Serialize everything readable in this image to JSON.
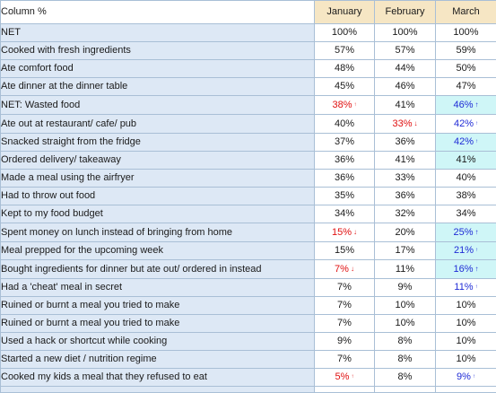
{
  "table": {
    "corner_label": "Column %",
    "columns": [
      "January",
      "February",
      "March"
    ],
    "rows": [
      {
        "label": "NET",
        "cells": [
          {
            "v": "100%"
          },
          {
            "v": "100%"
          },
          {
            "v": "100%"
          }
        ]
      },
      {
        "label": "Cooked with fresh ingredients",
        "cells": [
          {
            "v": "57%"
          },
          {
            "v": "57%"
          },
          {
            "v": "59%"
          }
        ]
      },
      {
        "label": "Ate comfort food",
        "cells": [
          {
            "v": "48%"
          },
          {
            "v": "44%"
          },
          {
            "v": "50%"
          }
        ]
      },
      {
        "label": "Ate dinner at the dinner table",
        "cells": [
          {
            "v": "45%"
          },
          {
            "v": "46%"
          },
          {
            "v": "47%"
          }
        ]
      },
      {
        "label": "NET: Wasted food",
        "cells": [
          {
            "v": "38%",
            "c": "red",
            "a": "up",
            "s": "small"
          },
          {
            "v": "41%"
          },
          {
            "v": "46%",
            "c": "blue",
            "a": "up",
            "hl": true
          }
        ]
      },
      {
        "label": "Ate out at restaurant/ cafe/ pub",
        "cells": [
          {
            "v": "40%"
          },
          {
            "v": "33%",
            "c": "red",
            "a": "down"
          },
          {
            "v": "42%",
            "c": "blue",
            "a": "up",
            "s": "small"
          }
        ]
      },
      {
        "label": "Snacked straight from the fridge",
        "cells": [
          {
            "v": "37%"
          },
          {
            "v": "36%"
          },
          {
            "v": "42%",
            "c": "blue",
            "a": "up",
            "s": "small",
            "hl": true
          }
        ]
      },
      {
        "label": "Ordered delivery/ takeaway",
        "cells": [
          {
            "v": "36%"
          },
          {
            "v": "41%"
          },
          {
            "v": "41%",
            "hl": true
          }
        ]
      },
      {
        "label": "Made a meal using the airfryer",
        "cells": [
          {
            "v": "36%"
          },
          {
            "v": "33%"
          },
          {
            "v": "40%"
          }
        ]
      },
      {
        "label": "Had to throw out food",
        "cells": [
          {
            "v": "35%"
          },
          {
            "v": "36%"
          },
          {
            "v": "38%"
          }
        ]
      },
      {
        "label": "Kept to my food budget",
        "cells": [
          {
            "v": "34%"
          },
          {
            "v": "32%"
          },
          {
            "v": "34%"
          }
        ]
      },
      {
        "label": "Spent money on lunch instead of bringing from home",
        "cells": [
          {
            "v": "15%",
            "c": "red",
            "a": "down"
          },
          {
            "v": "20%"
          },
          {
            "v": "25%",
            "c": "blue",
            "a": "up",
            "hl": true
          }
        ]
      },
      {
        "label": "Meal prepped for the upcoming week",
        "cells": [
          {
            "v": "15%"
          },
          {
            "v": "17%"
          },
          {
            "v": "21%",
            "c": "blue",
            "a": "up",
            "s": "small",
            "hl": true
          }
        ]
      },
      {
        "label": "Bought ingredients for dinner but ate out/ ordered in instead",
        "cells": [
          {
            "v": "7%",
            "c": "red",
            "a": "down"
          },
          {
            "v": "11%"
          },
          {
            "v": "16%",
            "c": "blue",
            "a": "up",
            "hl": true
          }
        ]
      },
      {
        "label": "Had a 'cheat' meal in secret",
        "cells": [
          {
            "v": "7%"
          },
          {
            "v": "9%"
          },
          {
            "v": "11%",
            "c": "blue",
            "a": "up",
            "s": "small"
          }
        ]
      },
      {
        "label": "Ruined or burnt a meal you tried to make",
        "cells": [
          {
            "v": "7%"
          },
          {
            "v": "10%"
          },
          {
            "v": "10%"
          }
        ]
      },
      {
        "label": "Ruined or burnt a meal you tried to make",
        "cells": [
          {
            "v": "7%"
          },
          {
            "v": "10%"
          },
          {
            "v": "10%"
          }
        ]
      },
      {
        "label": "Used a hack or shortcut while cooking",
        "cells": [
          {
            "v": "9%"
          },
          {
            "v": "8%"
          },
          {
            "v": "10%"
          }
        ]
      },
      {
        "label": "Started a new diet / nutrition regime",
        "cells": [
          {
            "v": "7%"
          },
          {
            "v": "8%"
          },
          {
            "v": "10%"
          }
        ]
      },
      {
        "label": "Cooked my kids a meal that they refused to eat",
        "cells": [
          {
            "v": "5%",
            "c": "red",
            "a": "up",
            "s": "small"
          },
          {
            "v": "8%"
          },
          {
            "v": "9%",
            "c": "blue",
            "a": "up",
            "s": "small"
          }
        ]
      }
    ],
    "colors": {
      "header_bg": "#f6e6c4",
      "row_label_bg": "#dde8f5",
      "highlight_bg": "#cff6f7",
      "significant_low": "#e01010",
      "significant_high": "#1f2bd6",
      "border": "#a9bfd6"
    }
  }
}
